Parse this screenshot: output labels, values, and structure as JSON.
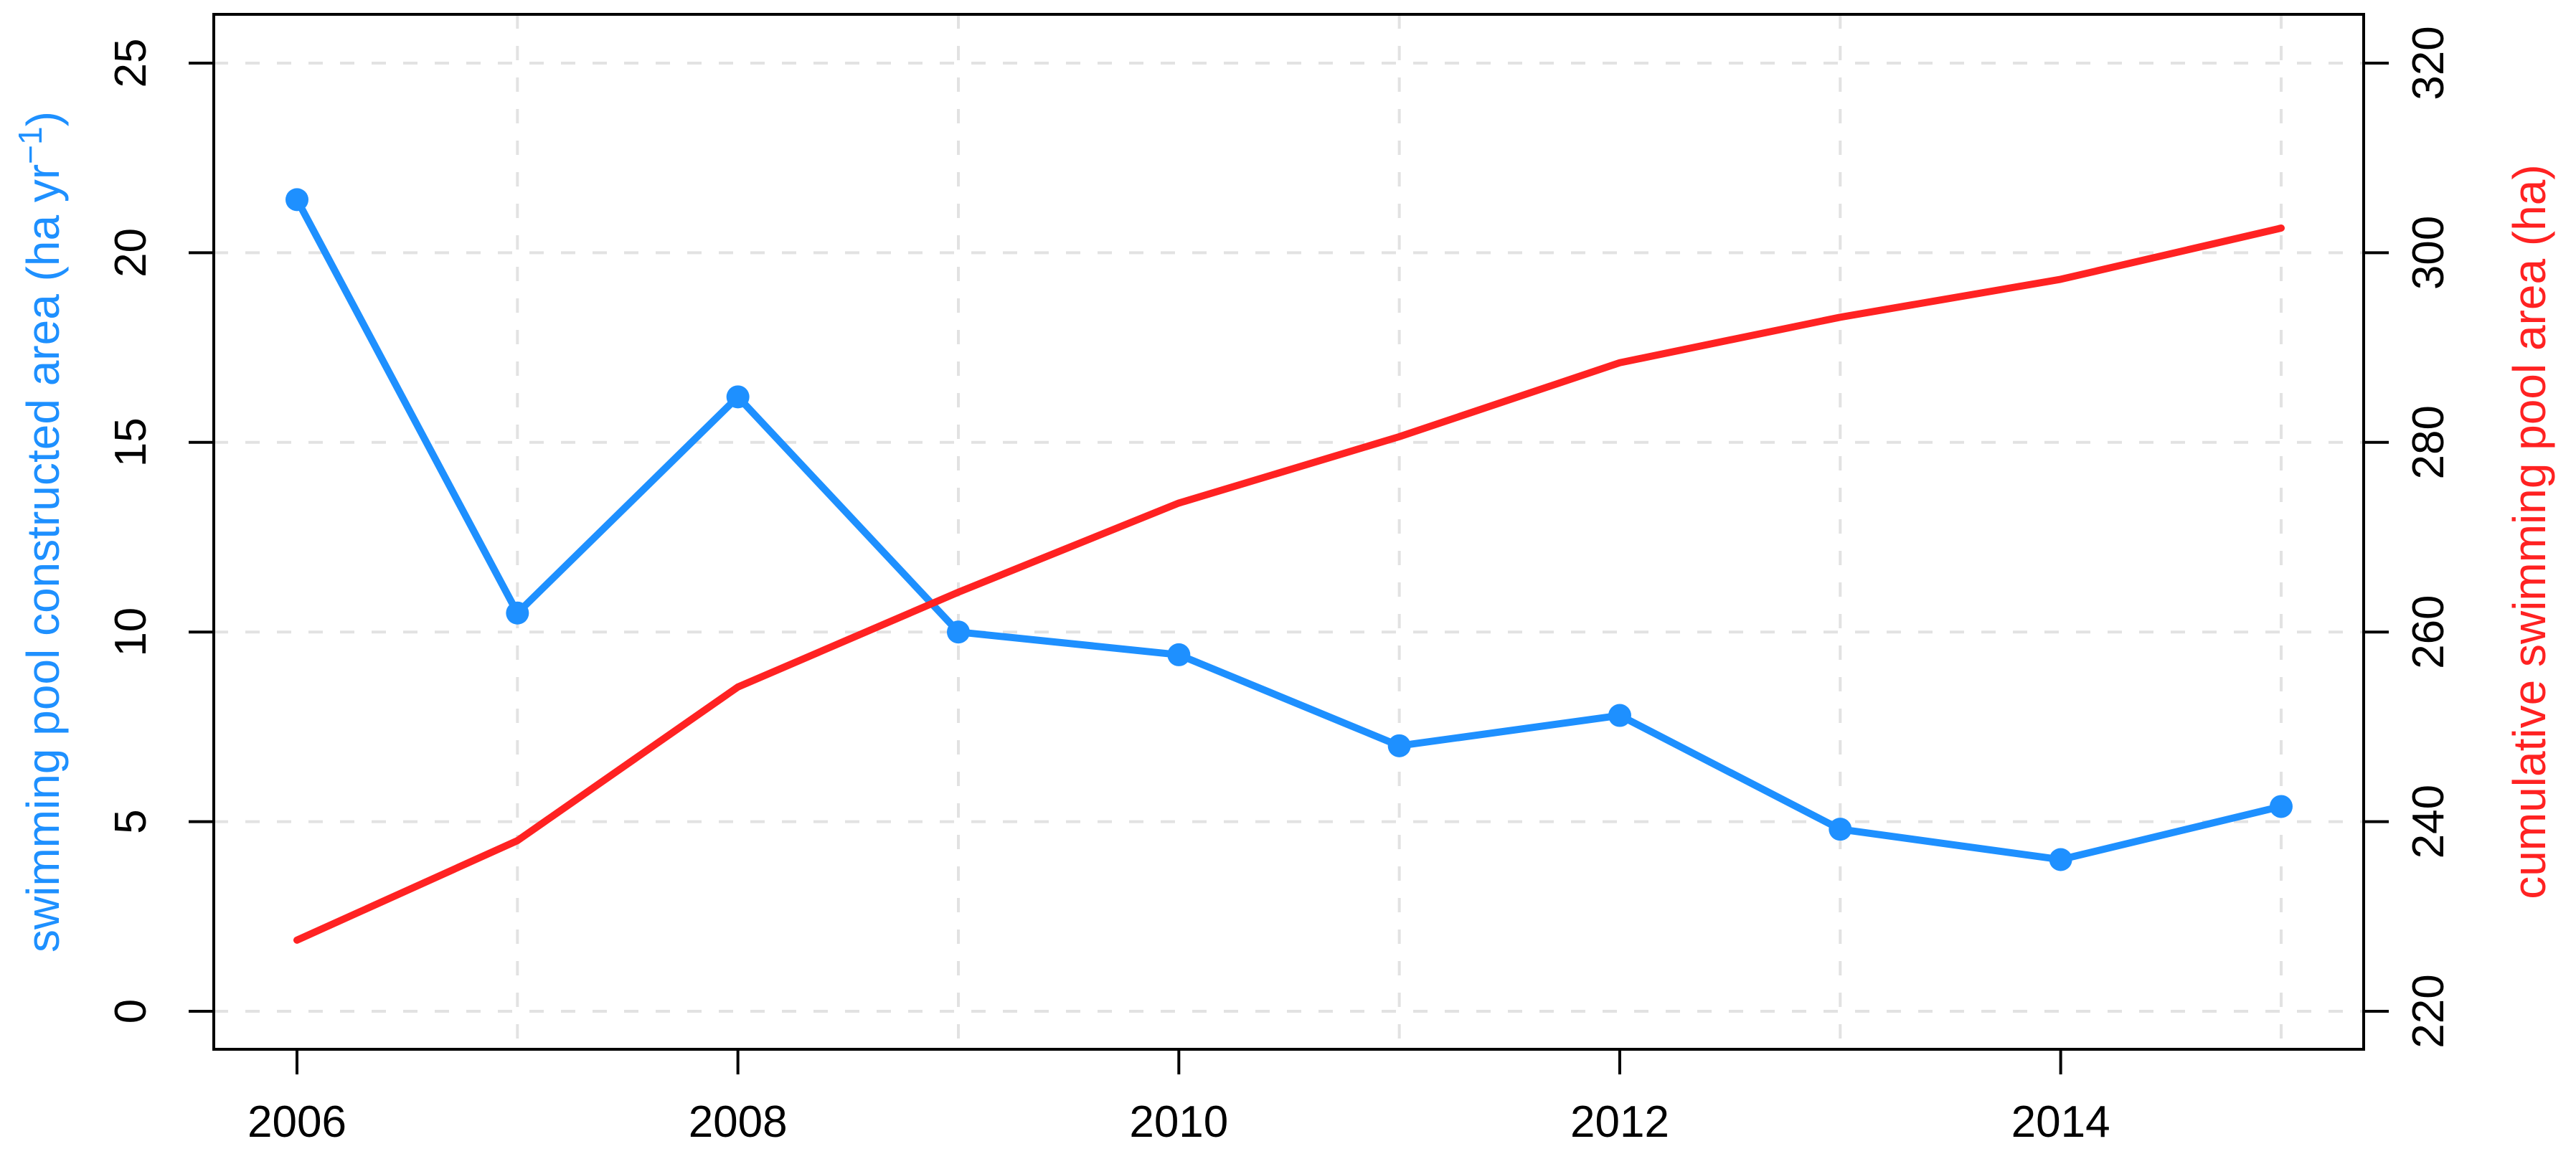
{
  "figure": {
    "background_color": "#ffffff",
    "description": "Dual-axis line chart of annual and cumulative swimming pool constructed area"
  },
  "chart_data": {
    "type": "line",
    "x": [
      2006,
      2007,
      2008,
      2009,
      2010,
      2011,
      2012,
      2013,
      2014,
      2015
    ],
    "x_axis": {
      "tick_values": [
        2006,
        2008,
        2010,
        2012,
        2014
      ],
      "tick_labels": [
        "2006",
        "2008",
        "2010",
        "2012",
        "2014"
      ],
      "grid_values": [
        2007,
        2009,
        2011,
        2013,
        2015
      ],
      "range": [
        2005.62,
        2015.37
      ],
      "label": ""
    },
    "y_left": {
      "title": "swimming pool constructed area (ha yr⁻¹)",
      "title_parts": {
        "prefix": "swimming pool constructed area (ha yr",
        "superscript": "−1",
        "suffix": ")"
      },
      "tick_values": [
        0,
        5,
        10,
        15,
        20,
        25
      ],
      "tick_labels": [
        "0",
        "5",
        "10",
        "15",
        "20",
        "25"
      ],
      "range": [
        -1.0,
        26.3
      ],
      "color": "#1e90ff"
    },
    "y_right": {
      "title": "cumulative swimming pool area (ha)",
      "tick_values": [
        220,
        240,
        260,
        280,
        300,
        320
      ],
      "tick_labels": [
        "220",
        "240",
        "260",
        "280",
        "300",
        "320"
      ],
      "range": [
        216.0,
        325.1
      ],
      "color": "#ff2222"
    },
    "series": [
      {
        "name": "swimming pool constructed area (ha yr-1)",
        "axis": "left",
        "color": "#1e90ff",
        "marker": "filled-circle",
        "values": [
          21.4,
          10.5,
          16.2,
          10.0,
          9.4,
          7.0,
          7.8,
          4.8,
          4.0,
          5.4
        ]
      },
      {
        "name": "cumulative swimming pool area (ha)",
        "axis": "right",
        "color": "#ff2222",
        "marker": "none",
        "values": [
          227.5,
          238.0,
          254.2,
          264.2,
          273.6,
          280.6,
          288.4,
          293.2,
          297.2,
          302.6
        ]
      }
    ],
    "grid": {
      "show": true,
      "style": "dashed",
      "color": "#e2e2e2"
    },
    "legend": "none"
  }
}
